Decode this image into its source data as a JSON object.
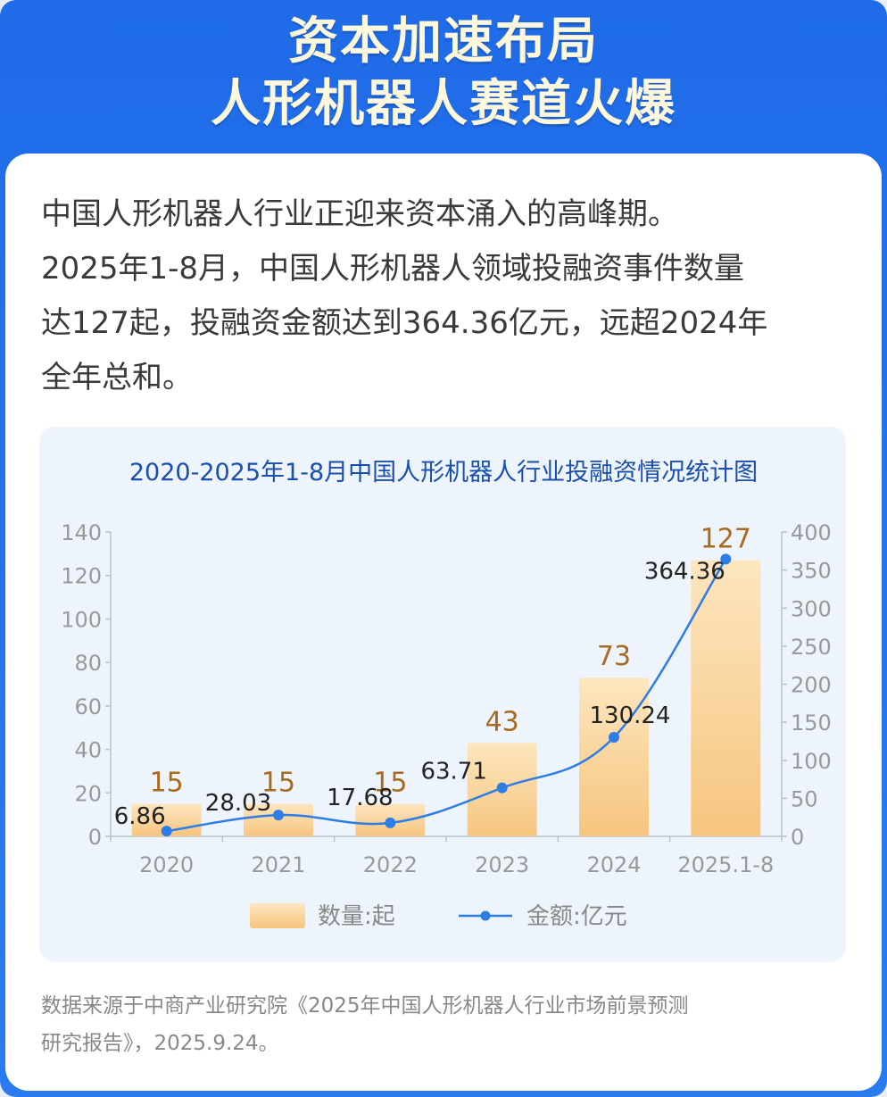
{
  "header": {
    "line1": "资本加速布局",
    "line2": "人形机器人赛道火爆"
  },
  "intro": {
    "lines": [
      "中国人形机器人行业正迎来资本涌入的高峰期。",
      "2025年1-8月，中国人形机器人领域投融资事件数量",
      "达127起，投融资金额达到364.36亿元，远超2024年",
      "全年总和。"
    ]
  },
  "chart_data": {
    "type": "bar",
    "title": "2020-2025年1-8月中国人形机器人行业投融资情况统计图",
    "categories": [
      "2020",
      "2021",
      "2022",
      "2023",
      "2024",
      "2025.1-8"
    ],
    "series": [
      {
        "name": "数量:起",
        "type": "bar",
        "axis": "left",
        "values": [
          15,
          15,
          15,
          43,
          73,
          127
        ],
        "labels": [
          "15",
          "15",
          "15",
          "43",
          "73",
          "127"
        ],
        "color": "#f7c98a"
      },
      {
        "name": "金额:亿元",
        "type": "line",
        "axis": "right",
        "values": [
          6.86,
          28.03,
          17.68,
          63.71,
          130.24,
          364.36
        ],
        "labels": [
          "6.86",
          "28.03",
          "17.68",
          "63.71",
          "130.24",
          "364.36"
        ],
        "color": "#2e7de6"
      }
    ],
    "y_left": {
      "min": 0,
      "max": 140,
      "ticks": [
        "0",
        "20",
        "40",
        "60",
        "80",
        "100",
        "120",
        "140"
      ]
    },
    "y_right": {
      "min": 0,
      "max": 400,
      "ticks": [
        "0",
        "50",
        "100",
        "150",
        "200",
        "250",
        "300",
        "350",
        "400"
      ]
    },
    "grid": false,
    "legend_position": "bottom",
    "colors": {
      "bar_label": "#a86a1e",
      "line_label": "#222222",
      "axis_text": "#999999"
    }
  },
  "source": {
    "lines": [
      "数据来源于中商产业研究院《2025年中国人形机器人行业市场前景预测",
      "研究报告》，2025.9.24。"
    ]
  }
}
